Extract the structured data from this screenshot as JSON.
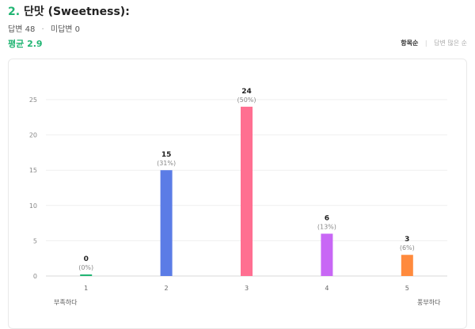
{
  "question": {
    "number": "2.",
    "title": "단맛 (Sweetness):",
    "answered": "답변 48",
    "unanswered": "미답변 0",
    "average": "평균 2.9"
  },
  "sort": {
    "active": "항목순",
    "other": "답변 많은 순"
  },
  "colors": {
    "accent": "#21b573",
    "bar1": "#21b573",
    "bar2": "#5b7ce6",
    "bar3": "#ff6f91",
    "bar4": "#c867f5",
    "bar5": "#ff8a3d"
  },
  "chart_data": {
    "type": "bar",
    "categories": [
      "1",
      "2",
      "3",
      "4",
      "5"
    ],
    "values": [
      0,
      15,
      24,
      6,
      3
    ],
    "value_labels": [
      "0",
      "15",
      "24",
      "6",
      "3"
    ],
    "percent_labels": [
      "(0%)",
      "(31%)",
      "(50%)",
      "(13%)",
      "(6%)"
    ],
    "colors": [
      "#21b573",
      "#5b7ce6",
      "#ff6f91",
      "#c867f5",
      "#ff8a3d"
    ],
    "ylim": [
      0,
      25
    ],
    "yticks": [
      0,
      5,
      10,
      15,
      20,
      25
    ],
    "grid": true,
    "low_label": "부족하다",
    "high_label": "풍부하다"
  }
}
